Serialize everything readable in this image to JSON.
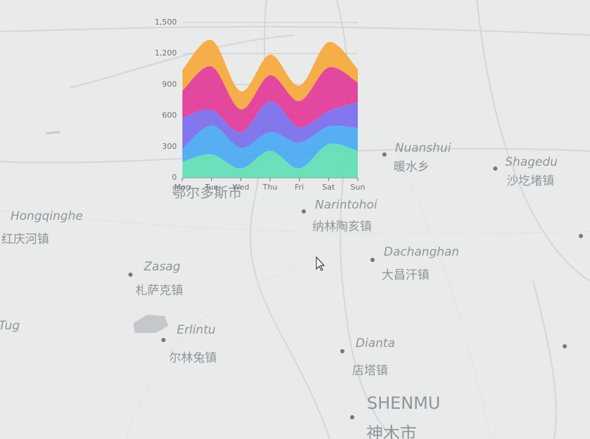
{
  "chart_data": {
    "type": "stacked-area",
    "categories": [
      "Mon",
      "Tue",
      "Wed",
      "Thu",
      "Fri",
      "Sat",
      "Sun"
    ],
    "series": [
      {
        "color": "#5ee0b6",
        "values": [
          155,
          225,
          90,
          260,
          90,
          325,
          260
        ]
      },
      {
        "color": "#49a9f2",
        "values": [
          125,
          280,
          200,
          180,
          250,
          170,
          220
        ]
      },
      {
        "color": "#7a6cee",
        "values": [
          300,
          150,
          150,
          300,
          150,
          150,
          250
        ]
      },
      {
        "color": "#e23897",
        "values": [
          260,
          420,
          220,
          250,
          250,
          420,
          190
        ]
      },
      {
        "color": "#f6a83a",
        "values": [
          200,
          255,
          175,
          200,
          150,
          245,
          130
        ]
      }
    ],
    "ylim": [
      0,
      1500
    ],
    "yticks": [
      0,
      300,
      600,
      900,
      {
        "value": 1200,
        "label": "1,200"
      },
      {
        "value": 1500,
        "label": "1,500"
      }
    ],
    "grid": true,
    "smooth": true
  },
  "map": {
    "labels": [
      "Nuanshui",
      "暖水乡",
      "Shagedu",
      "沙圪堵镇",
      "Hongqinghe",
      "红庆河镇",
      "Narintohoi",
      "纳林陶亥镇",
      "Dachanghan",
      "大昌汗镇",
      "Zasag",
      "札萨克镇",
      "Erlintu",
      "尔林兔镇",
      "Tug",
      "Dianta",
      "店塔镇",
      "SHENMU",
      "神木市",
      "鄂尔多斯市"
    ]
  }
}
